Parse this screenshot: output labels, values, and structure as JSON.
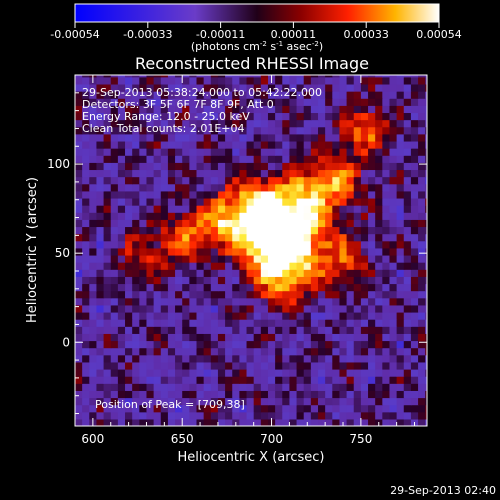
{
  "chart_data": {
    "type": "heatmap",
    "title": "Reconstructed RHESSI Image",
    "xlabel": "Heliocentric X (arcsec)",
    "ylabel": "Heliocentric Y (arcsec)",
    "xlim": [
      590,
      787
    ],
    "ylim": [
      -47,
      150
    ],
    "x_ticks": [
      600,
      650,
      700,
      750
    ],
    "y_ticks": [
      0,
      50,
      100
    ],
    "colorbar": {
      "range": [
        -0.00054,
        0.00054
      ],
      "ticks": [
        "-0.00054",
        "-0.00033",
        "-0.00011",
        "0.00011",
        "0.00033",
        "0.00054"
      ],
      "units_text": "(photons cm",
      "units_exp1": "-2",
      "units_mid1": " s",
      "units_exp2": "-1",
      "units_mid2": " asec",
      "units_exp3": "-2",
      "units_end": ")"
    },
    "annotations": [
      "29-Sep-2013 05:38:24.000 to 05:42:22.000",
      "Detectors: 3F 5F 6F 7F 8F 9F, Att 0",
      "Energy Range: 12.0 - 25.0 keV",
      "Clean     Total counts: 2.01E+04"
    ],
    "peak_label": "Position of Peak = [709,38]",
    "peak": [
      709,
      38
    ],
    "sources": [
      {
        "x": 709,
        "y": 52,
        "peak": 1.0,
        "sigma": 14
      },
      {
        "x": 700,
        "y": 64,
        "peak": 0.85,
        "sigma": 13
      },
      {
        "x": 690,
        "y": 76,
        "peak": 0.7,
        "sigma": 12
      },
      {
        "x": 720,
        "y": 80,
        "peak": 0.55,
        "sigma": 12
      },
      {
        "x": 735,
        "y": 92,
        "peak": 0.55,
        "sigma": 11
      },
      {
        "x": 752,
        "y": 120,
        "peak": 0.6,
        "sigma": 9
      },
      {
        "x": 670,
        "y": 66,
        "peak": 0.55,
        "sigma": 10
      },
      {
        "x": 650,
        "y": 58,
        "peak": 0.45,
        "sigma": 10
      },
      {
        "x": 628,
        "y": 48,
        "peak": 0.35,
        "sigma": 9
      },
      {
        "x": 741,
        "y": 46,
        "peak": 0.45,
        "sigma": 10
      },
      {
        "x": 705,
        "y": 30,
        "peak": 0.35,
        "sigma": 10
      }
    ]
  },
  "footer": {
    "timestamp": "29-Sep-2013 02:40"
  }
}
